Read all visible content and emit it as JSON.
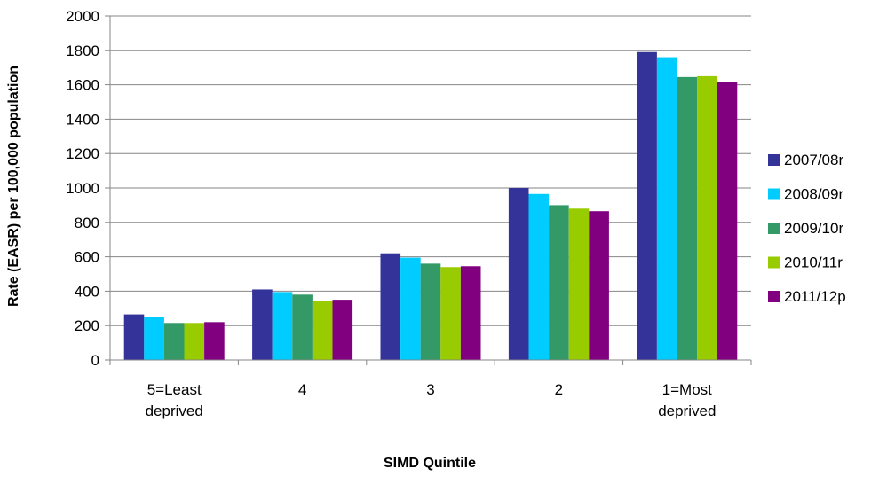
{
  "chart_data": {
    "type": "bar",
    "xlabel": "SIMD Quintile",
    "ylabel": "Rate (EASR) per 100,000 population",
    "ylim": [
      0,
      2000
    ],
    "yticks": [
      0,
      200,
      400,
      600,
      800,
      1000,
      1200,
      1400,
      1600,
      1800,
      2000
    ],
    "grid": true,
    "legend_position": "right",
    "categories": [
      [
        "5=Least",
        "deprived"
      ],
      [
        "4"
      ],
      [
        "3"
      ],
      [
        "2"
      ],
      [
        "1=Most",
        "deprived"
      ]
    ],
    "series": [
      {
        "name": "2007/08r",
        "color": "#333399",
        "values": [
          265,
          410,
          620,
          1000,
          1790
        ]
      },
      {
        "name": "2008/09r",
        "color": "#00CCFF",
        "values": [
          250,
          395,
          595,
          965,
          1760
        ]
      },
      {
        "name": "2009/10r",
        "color": "#339966",
        "values": [
          215,
          380,
          560,
          900,
          1645
        ]
      },
      {
        "name": "2010/11r",
        "color": "#99CC00",
        "values": [
          215,
          345,
          540,
          880,
          1650
        ]
      },
      {
        "name": "2011/12p",
        "color": "#800080",
        "values": [
          220,
          350,
          545,
          865,
          1615
        ]
      }
    ]
  }
}
